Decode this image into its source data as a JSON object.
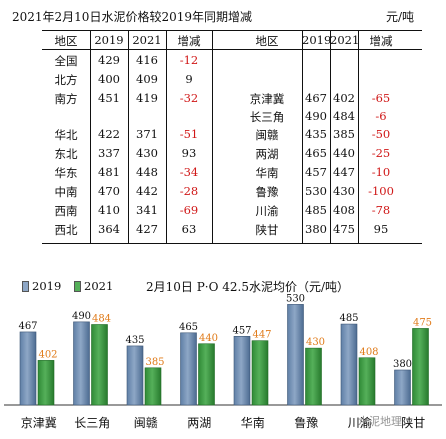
{
  "header": {
    "title": "2021年2月10日水泥价格较2019年同期增减",
    "unit": "元/吨"
  },
  "table_left": {
    "columns": [
      "地区",
      "2019",
      "2021",
      "增减"
    ],
    "rows": [
      {
        "region": "全国",
        "y2019": "429",
        "y2021": "416",
        "change": "-12",
        "neg": true
      },
      {
        "region": "北方",
        "y2019": "400",
        "y2021": "409",
        "change": "9",
        "neg": false
      },
      {
        "region": "南方",
        "y2019": "451",
        "y2021": "419",
        "change": "-32",
        "neg": true
      },
      {
        "region": "华北",
        "y2019": "422",
        "y2021": "371",
        "change": "-51",
        "neg": true
      },
      {
        "region": "东北",
        "y2019": "337",
        "y2021": "430",
        "change": "93",
        "neg": false
      },
      {
        "region": "华东",
        "y2019": "481",
        "y2021": "448",
        "change": "-34",
        "neg": true
      },
      {
        "region": "中南",
        "y2019": "470",
        "y2021": "442",
        "change": "-28",
        "neg": true
      },
      {
        "region": "西南",
        "y2019": "410",
        "y2021": "341",
        "change": "-69",
        "neg": true
      },
      {
        "region": "西北",
        "y2019": "364",
        "y2021": "427",
        "change": "63",
        "neg": false
      }
    ]
  },
  "table_right": {
    "columns": [
      "地区",
      "2019",
      "2021",
      "增减"
    ],
    "rows": [
      {
        "region": "京津冀",
        "y2019": "467",
        "y2021": "402",
        "change": "-65",
        "neg": true
      },
      {
        "region": "长三角",
        "y2019": "490",
        "y2021": "484",
        "change": "-6",
        "neg": true
      },
      {
        "region": "闽赣",
        "y2019": "435",
        "y2021": "385",
        "change": "-50",
        "neg": true
      },
      {
        "region": "两湖",
        "y2019": "465",
        "y2021": "440",
        "change": "-25",
        "neg": true
      },
      {
        "region": "华南",
        "y2019": "457",
        "y2021": "447",
        "change": "-10",
        "neg": true
      },
      {
        "region": "鲁豫",
        "y2019": "530",
        "y2021": "430",
        "change": "-100",
        "neg": true
      },
      {
        "region": "川渝",
        "y2019": "485",
        "y2021": "408",
        "change": "-78",
        "neg": true
      },
      {
        "region": "陕甘",
        "y2019": "380",
        "y2021": "475",
        "change": "95",
        "neg": false
      }
    ]
  },
  "colors": {
    "bar2019": "#8ea7c6",
    "bar2021": "#55b05a",
    "label2019": "#111111",
    "label2021": "#e07b1a",
    "negative": "#d01818"
  },
  "watermark": "水泥地理",
  "chart_data": {
    "type": "bar",
    "title": "2月10日 P·O 42.5水泥均价（元/吨）",
    "categories": [
      "京津冀",
      "长三角",
      "闽赣",
      "两湖",
      "华南",
      "鲁豫",
      "川渝",
      "陕甘"
    ],
    "series": [
      {
        "name": "2019",
        "values": [
          467,
          490,
          435,
          465,
          457,
          530,
          485,
          380
        ]
      },
      {
        "name": "2021",
        "values": [
          402,
          484,
          385,
          440,
          447,
          430,
          408,
          475
        ]
      }
    ],
    "ylim": [
      300,
      540
    ],
    "legend": "top-left"
  }
}
